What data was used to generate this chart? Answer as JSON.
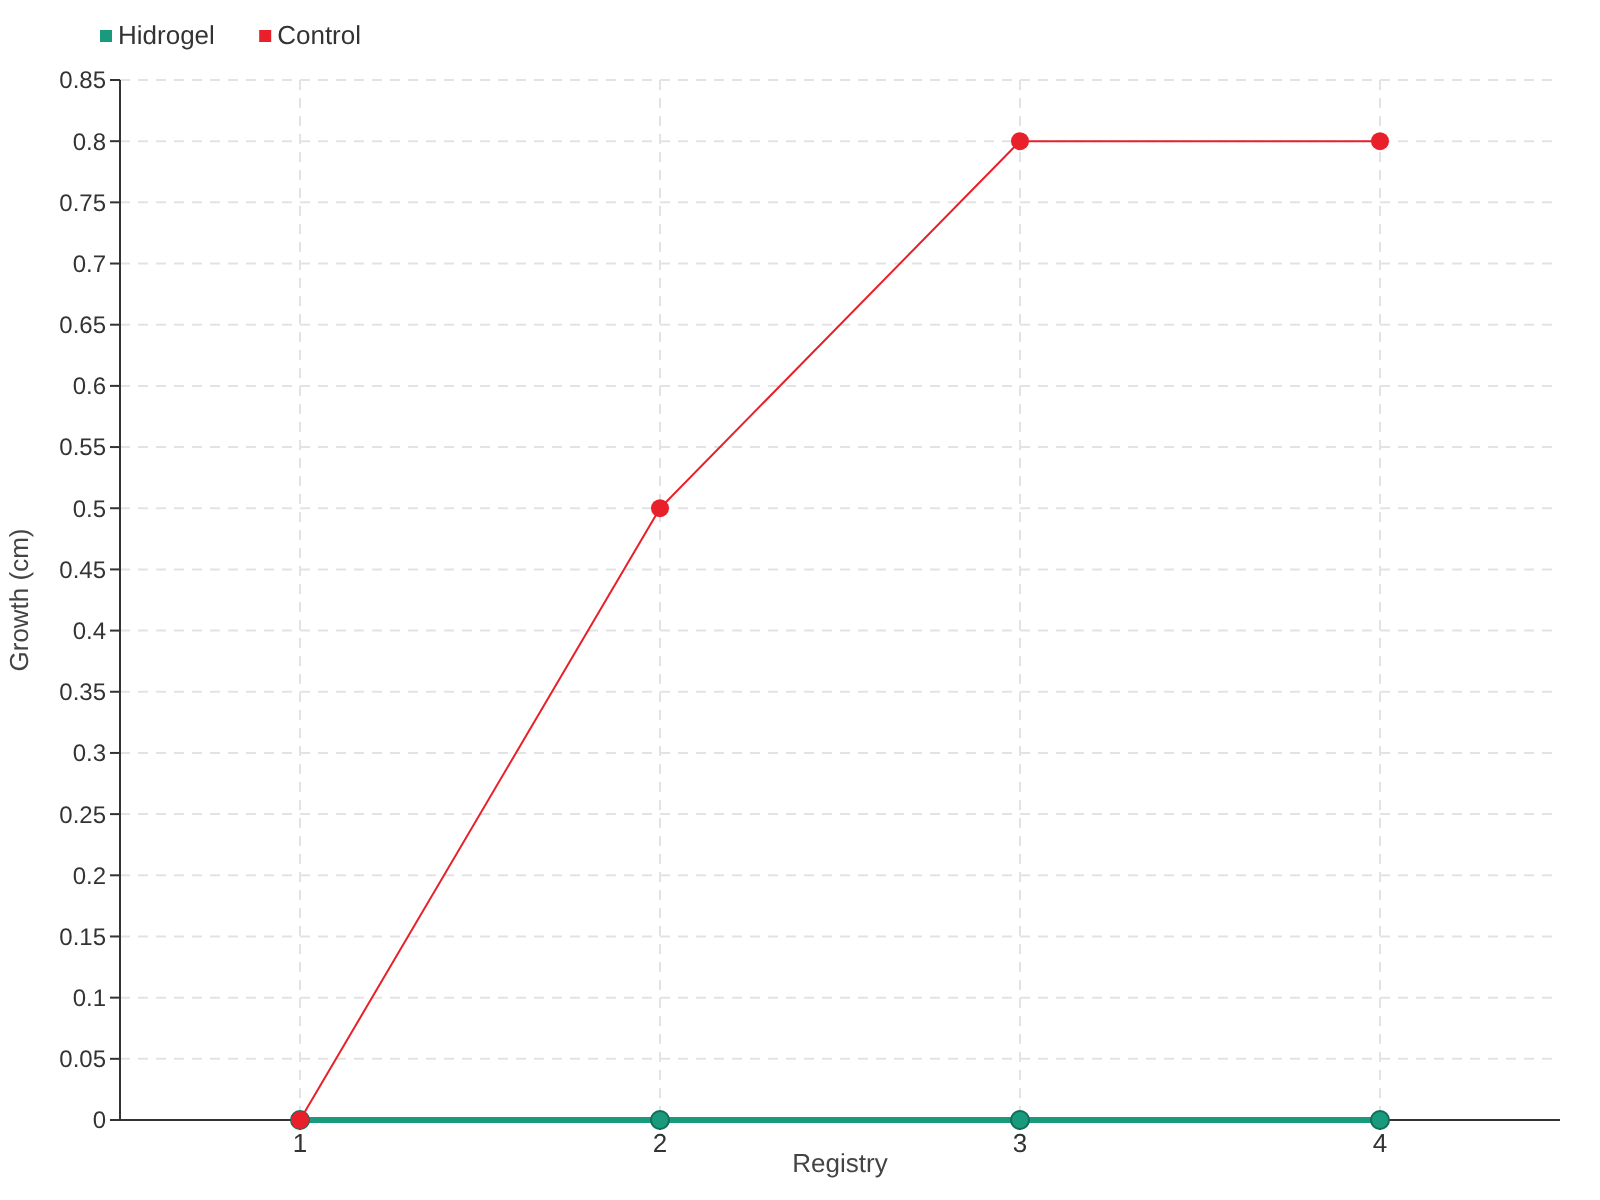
{
  "chart_data": {
    "type": "line",
    "xlabel": "Registry",
    "ylabel": "Growth (cm)",
    "x": [
      1,
      2,
      3,
      4
    ],
    "series": [
      {
        "name": "Hidrogel",
        "color": "#1a9a7c",
        "values": [
          0,
          0,
          0,
          0
        ]
      },
      {
        "name": "Control",
        "color": "#e8202a",
        "values": [
          0,
          0.5,
          0.8,
          0.8
        ]
      }
    ],
    "xlim": [
      0.5,
      4.5
    ],
    "xticks": [
      1,
      2,
      3,
      4
    ],
    "ylim": [
      0,
      0.85
    ],
    "yticks": [
      0,
      0.05,
      0.1,
      0.15,
      0.2,
      0.25,
      0.3,
      0.35,
      0.4,
      0.45,
      0.5,
      0.55,
      0.6,
      0.65,
      0.7,
      0.75,
      0.8,
      0.85
    ],
    "grid": true,
    "legend": "top left",
    "marker": "circle",
    "line_style": "solid"
  }
}
